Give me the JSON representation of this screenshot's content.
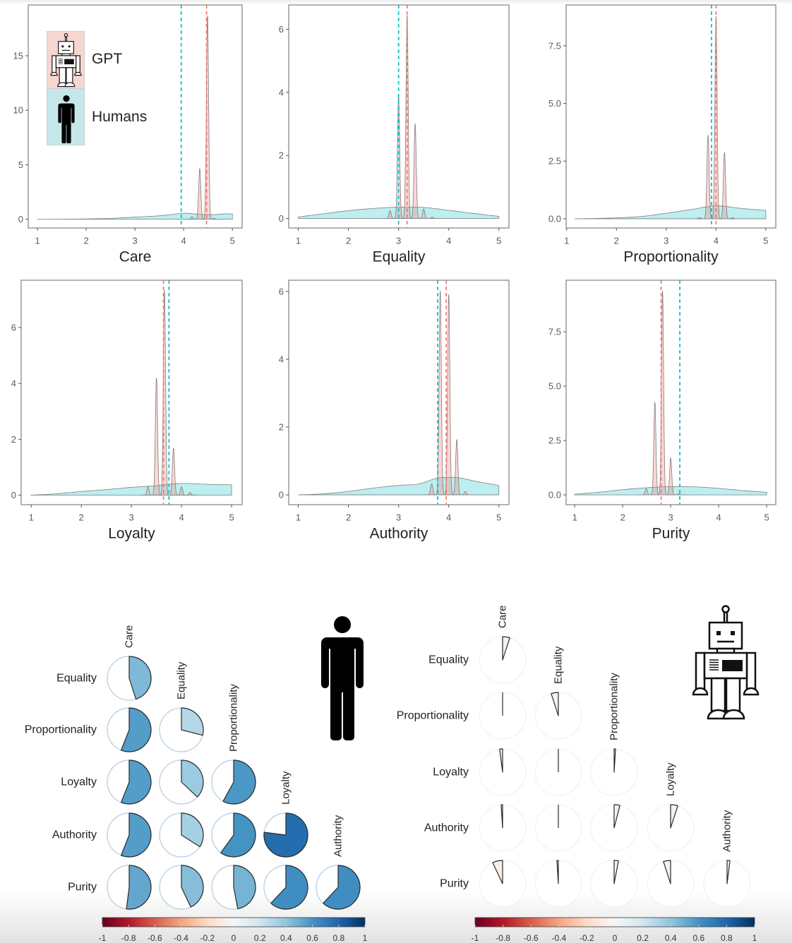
{
  "figure": {
    "legend": {
      "items": [
        {
          "label": "GPT",
          "icon": "robot-icon",
          "color": "#f8766d"
        },
        {
          "label": "Humans",
          "icon": "person-icon",
          "color": "#00bfc4"
        }
      ]
    },
    "icons": {
      "humans_matrix": "person-icon",
      "gpt_matrix": "robot-icon"
    }
  },
  "chart_data": [
    {
      "type": "area",
      "id": "care",
      "title": "",
      "xlabel": "Care",
      "ylabel": "",
      "xlim": [
        0.81,
        5.2
      ],
      "ylim": [
        -0.8,
        19.66
      ],
      "grid": false,
      "legend": "top-left",
      "xticks": [
        1,
        2,
        3,
        4,
        5
      ],
      "xtick_labels": [
        "1",
        "2",
        "3",
        "4",
        "5"
      ],
      "yticks": [
        0,
        5,
        10,
        15
      ],
      "ytick_labels": [
        "0",
        "5",
        "10",
        "15"
      ],
      "series": [
        {
          "name": "Humans",
          "mean": 3.95,
          "density": [
            [
              1,
              0
            ],
            [
              1.5,
              0.01
            ],
            [
              2,
              0.03
            ],
            [
              2.5,
              0.08
            ],
            [
              3,
              0.2
            ],
            [
              3.5,
              0.32
            ],
            [
              4,
              0.55
            ],
            [
              4.3,
              0.46
            ],
            [
              4.6,
              0.42
            ],
            [
              4.85,
              0.5
            ],
            [
              5,
              0.48
            ]
          ]
        },
        {
          "name": "GPT",
          "mean": 4.47,
          "peaks": [
            [
              4.17,
              0.25
            ],
            [
              4.33,
              4.65
            ],
            [
              4.49,
              18.7
            ],
            [
              4.62,
              0.1
            ]
          ]
        }
      ]
    },
    {
      "type": "area",
      "id": "equality",
      "title": "",
      "xlabel": "Equality",
      "ylabel": "",
      "xlim": [
        0.81,
        5.2
      ],
      "ylim": [
        -0.3,
        6.77
      ],
      "grid": false,
      "xticks": [
        1,
        2,
        3,
        4,
        5
      ],
      "xtick_labels": [
        "1",
        "2",
        "3",
        "4",
        "5"
      ],
      "yticks": [
        0,
        2,
        4,
        6
      ],
      "ytick_labels": [
        "0",
        "2",
        "4",
        "6"
      ],
      "series": [
        {
          "name": "Humans",
          "mean": 3.0,
          "density": [
            [
              1,
              0.05
            ],
            [
              1.5,
              0.15
            ],
            [
              2,
              0.25
            ],
            [
              2.5,
              0.32
            ],
            [
              3,
              0.36
            ],
            [
              3.5,
              0.35
            ],
            [
              4,
              0.26
            ],
            [
              4.5,
              0.16
            ],
            [
              5,
              0.07
            ]
          ]
        },
        {
          "name": "GPT",
          "mean": 3.17,
          "peaks": [
            [
              2.83,
              0.25
            ],
            [
              3.0,
              3.9
            ],
            [
              3.17,
              6.45
            ],
            [
              3.33,
              3.0
            ],
            [
              3.5,
              0.3
            ],
            [
              3.67,
              0.05
            ]
          ]
        }
      ]
    },
    {
      "type": "area",
      "id": "proportionality",
      "title": "",
      "xlabel": "Proportionality",
      "ylabel": "",
      "xlim": [
        0.99,
        5.2
      ],
      "ylim": [
        -0.4,
        9.27
      ],
      "grid": false,
      "xticks": [
        1,
        2,
        3,
        4,
        5
      ],
      "xtick_labels": [
        "1",
        "2",
        "3",
        "4",
        "5"
      ],
      "yticks": [
        0,
        2.5,
        5,
        7.5
      ],
      "ytick_labels": [
        "0.0",
        "2.5",
        "5.0",
        "7.5"
      ],
      "series": [
        {
          "name": "Humans",
          "mean": 3.91,
          "density": [
            [
              1.17,
              0
            ],
            [
              1.5,
              0.01
            ],
            [
              2,
              0.04
            ],
            [
              2.5,
              0.1
            ],
            [
              3,
              0.24
            ],
            [
              3.5,
              0.4
            ],
            [
              4,
              0.56
            ],
            [
              4.5,
              0.45
            ],
            [
              5,
              0.36
            ]
          ]
        },
        {
          "name": "GPT",
          "mean": 4.0,
          "peaks": [
            [
              3.67,
              0.05
            ],
            [
              3.84,
              3.62
            ],
            [
              4.0,
              8.78
            ],
            [
              4.17,
              2.87
            ],
            [
              4.33,
              0.05
            ]
          ]
        }
      ]
    },
    {
      "type": "area",
      "id": "loyalty",
      "title": "",
      "xlabel": "Loyalty",
      "ylabel": "",
      "xlim": [
        0.8,
        5.21
      ],
      "ylim": [
        -0.34,
        7.69
      ],
      "grid": false,
      "xticks": [
        1,
        2,
        3,
        4,
        5
      ],
      "xtick_labels": [
        "1",
        "2",
        "3",
        "4",
        "5"
      ],
      "yticks": [
        0,
        2,
        4,
        6
      ],
      "ytick_labels": [
        "0",
        "2",
        "4",
        "6"
      ],
      "series": [
        {
          "name": "Humans",
          "mean": 3.75,
          "density": [
            [
              1,
              0
            ],
            [
              1.5,
              0.05
            ],
            [
              2,
              0.13
            ],
            [
              2.5,
              0.2
            ],
            [
              3,
              0.28
            ],
            [
              3.5,
              0.34
            ],
            [
              4,
              0.42
            ],
            [
              4.5,
              0.39
            ],
            [
              5,
              0.37
            ]
          ]
        },
        {
          "name": "GPT",
          "mean": 3.64,
          "peaks": [
            [
              3.33,
              0.3
            ],
            [
              3.5,
              4.2
            ],
            [
              3.66,
              7.35
            ],
            [
              3.84,
              1.68
            ],
            [
              4.0,
              0.3
            ],
            [
              4.17,
              0.1
            ]
          ]
        }
      ]
    },
    {
      "type": "area",
      "id": "authority",
      "title": "",
      "xlabel": "Authority",
      "ylabel": "",
      "xlim": [
        0.81,
        5.2
      ],
      "ylim": [
        -0.29,
        6.33
      ],
      "grid": false,
      "xticks": [
        1,
        2,
        3,
        4,
        5
      ],
      "xtick_labels": [
        "1",
        "2",
        "3",
        "4",
        "5"
      ],
      "yticks": [
        0,
        2,
        4,
        6
      ],
      "ytick_labels": [
        "0",
        "2",
        "4",
        "6"
      ],
      "series": [
        {
          "name": "Humans",
          "mean": 3.78,
          "density": [
            [
              1,
              0
            ],
            [
              1.5,
              0.03
            ],
            [
              2,
              0.1
            ],
            [
              2.5,
              0.2
            ],
            [
              3,
              0.28
            ],
            [
              3.4,
              0.32
            ],
            [
              3.8,
              0.5
            ],
            [
              4.2,
              0.5
            ],
            [
              4.6,
              0.38
            ],
            [
              5,
              0.28
            ]
          ]
        },
        {
          "name": "GPT",
          "mean": 3.95,
          "peaks": [
            [
              3.66,
              0.33
            ],
            [
              3.83,
              6.03
            ],
            [
              4.0,
              5.92
            ],
            [
              4.16,
              1.63
            ],
            [
              4.33,
              0.1
            ]
          ]
        }
      ]
    },
    {
      "type": "area",
      "id": "purity",
      "title": "",
      "xlabel": "Purity",
      "ylabel": "",
      "xlim": [
        0.82,
        5.19
      ],
      "ylim": [
        -0.45,
        9.87
      ],
      "grid": false,
      "xticks": [
        1,
        2,
        3,
        4,
        5
      ],
      "xtick_labels": [
        "1",
        "2",
        "3",
        "4",
        "5"
      ],
      "yticks": [
        0,
        2.5,
        5,
        7.5
      ],
      "ytick_labels": [
        "0.0",
        "2.5",
        "5.0",
        "7.5"
      ],
      "series": [
        {
          "name": "Humans",
          "mean": 3.19,
          "density": [
            [
              1,
              0.03
            ],
            [
              1.5,
              0.12
            ],
            [
              2,
              0.24
            ],
            [
              2.5,
              0.33
            ],
            [
              3,
              0.38
            ],
            [
              3.5,
              0.37
            ],
            [
              4,
              0.3
            ],
            [
              4.5,
              0.2
            ],
            [
              5,
              0.12
            ]
          ]
        },
        {
          "name": "GPT",
          "mean": 2.8,
          "peaks": [
            [
              2.49,
              0.3
            ],
            [
              2.67,
              4.27
            ],
            [
              2.83,
              9.39
            ],
            [
              3.0,
              1.7
            ],
            [
              3.17,
              0.05
            ]
          ]
        }
      ]
    },
    {
      "type": "heatmap",
      "id": "humans-correlations",
      "group": "Humans",
      "method": "pie",
      "title": "",
      "row_labels": [
        "Equality",
        "Proportionality",
        "Loyalty",
        "Authority",
        "Purity"
      ],
      "col_labels": [
        "Care",
        "Equality",
        "Proportionality",
        "Loyalty",
        "Authority"
      ],
      "values": [
        [
          0.45
        ],
        [
          0.56,
          0.29
        ],
        [
          0.56,
          0.37,
          0.58
        ],
        [
          0.56,
          0.34,
          0.6,
          0.77
        ],
        [
          0.52,
          0.43,
          0.47,
          0.62,
          0.62
        ]
      ],
      "colorbar": {
        "range": [
          -1,
          1
        ],
        "ticks": [
          "-1",
          "-0.8",
          "-0.6",
          "-0.4",
          "-0.2",
          "0",
          "0.2",
          "0.4",
          "0.6",
          "0.8",
          "1"
        ],
        "palette": [
          "#67001f",
          "#b2182b",
          "#d6604d",
          "#f4a582",
          "#fddbc7",
          "#f7f7f7",
          "#d1e5f0",
          "#92c5de",
          "#4393c3",
          "#2166ac",
          "#053061"
        ]
      }
    },
    {
      "type": "heatmap",
      "id": "gpt-correlations",
      "group": "GPT",
      "method": "pie",
      "title": "",
      "row_labels": [
        "Equality",
        "Proportionality",
        "Loyalty",
        "Authority",
        "Purity"
      ],
      "col_labels": [
        "Care",
        "Equality",
        "Proportionality",
        "Loyalty",
        "Authority"
      ],
      "values": [
        [
          0.05
        ],
        [
          0.0,
          -0.05
        ],
        [
          -0.02,
          0.0,
          0.01
        ],
        [
          -0.01,
          0.0,
          0.04,
          0.05
        ],
        [
          -0.07,
          -0.01,
          0.03,
          -0.05,
          0.02
        ]
      ],
      "colorbar": {
        "range": [
          -1,
          1
        ],
        "ticks": [
          "-1",
          "-0.8",
          "-0.6",
          "-0.4",
          "-0.2",
          "0",
          "0.2",
          "0.4",
          "0.6",
          "0.8",
          "1"
        ],
        "palette": [
          "#67001f",
          "#b2182b",
          "#d6604d",
          "#f4a582",
          "#fddbc7",
          "#f7f7f7",
          "#d1e5f0",
          "#92c5de",
          "#4393c3",
          "#2166ac",
          "#053061"
        ]
      }
    }
  ]
}
